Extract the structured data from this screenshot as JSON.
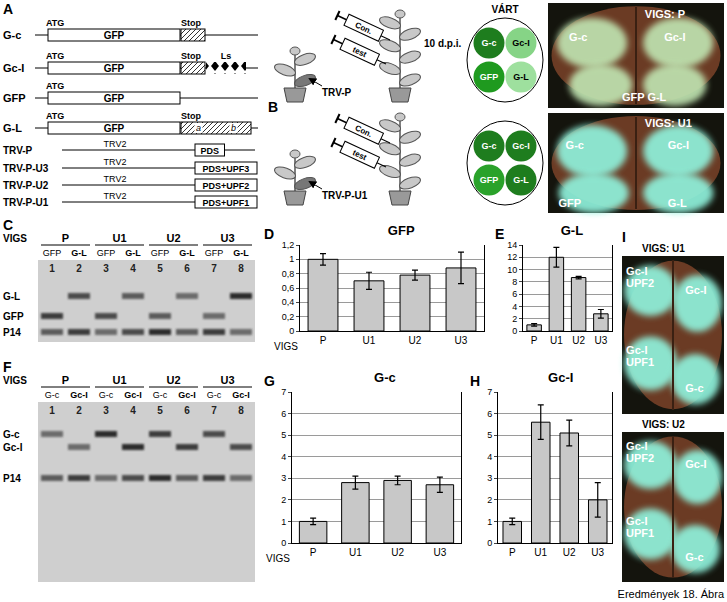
{
  "footer": "Eredmények 18. Ábra",
  "panels": {
    "A": {
      "letter": "A",
      "constructs": [
        {
          "name": "G-c",
          "start": "ATG",
          "orf": "GFP",
          "stop": "Stop"
        },
        {
          "name": "Gc-I",
          "start": "ATG",
          "orf": "GFP",
          "stop": "Stop",
          "extra": "Ls"
        },
        {
          "name": "GFP",
          "start": "ATG",
          "orf": "GFP"
        },
        {
          "name": "G-L",
          "start": "ATG",
          "orf": "GFP",
          "stop": "Stop",
          "segments": [
            "a",
            "b"
          ]
        }
      ],
      "vectors": [
        {
          "name": "TRV-P",
          "backbone": "TRV2",
          "insert": "PDS"
        },
        {
          "name": "TRV-P-U3",
          "backbone": "TRV2",
          "insert": "PDS+UPF3"
        },
        {
          "name": "TRV-P-U2",
          "backbone": "TRV2",
          "insert": "PDS+UPF2"
        },
        {
          "name": "TRV-P-U1",
          "backbone": "TRV2",
          "insert": "PDS+UPF1"
        }
      ]
    },
    "B": {
      "letter": "B",
      "timepoint": "10 d.p.i.",
      "expected": "VÁRT",
      "rows": [
        {
          "vector": "TRV-P",
          "syringes": [
            "Con.",
            "test"
          ],
          "circles": [
            "G-c",
            "Gc-I",
            "GFP",
            "G-L"
          ],
          "colors": [
            "#1e7d1e",
            "#86d486",
            "#1f9a1f",
            "#9ee09e"
          ],
          "photo": {
            "title": "VIGS: P",
            "labels": [
              [
                "G-c"
              ],
              [
                "Gc-I"
              ],
              [
                "GFP G-L"
              ]
            ]
          }
        },
        {
          "vector": "TRV-P-U1",
          "syringes": [
            "Con.",
            "test"
          ],
          "circles": [
            "G-c",
            "Gc-I",
            "GFP",
            "G-L"
          ],
          "colors": [
            "#1e7d1e",
            "#1e7d1e",
            "#2aa22a",
            "#1e7d1e"
          ],
          "photo": {
            "title": "VIGS: U1",
            "labels": [
              [
                "G-c"
              ],
              [
                "Gc-I"
              ],
              [
                "GFP"
              ],
              [
                "G-L"
              ]
            ]
          }
        }
      ]
    },
    "C": {
      "letter": "C",
      "label": "VIGS",
      "groups": [
        "P",
        "U1",
        "U2",
        "U3"
      ],
      "lanes": [
        "GFP",
        "G-L",
        "GFP",
        "G-L",
        "GFP",
        "G-L",
        "GFP",
        "G-L"
      ],
      "lane_numbers": [
        1,
        2,
        3,
        4,
        5,
        6,
        7,
        8
      ],
      "bands": [
        "G-L",
        "GFP",
        "P14"
      ]
    },
    "F": {
      "letter": "F",
      "label": "VIGS",
      "groups": [
        "P",
        "U1",
        "U2",
        "U3"
      ],
      "lanes": [
        "G-c",
        "Gc-I",
        "G-c",
        "Gc-I",
        "G-c",
        "Gc-I",
        "G-c",
        "Gc-I"
      ],
      "lane_numbers": [
        1,
        2,
        3,
        4,
        5,
        6,
        7,
        8
      ],
      "bands": [
        "G-c",
        "Gc-I",
        "P14"
      ]
    },
    "I": {
      "letter": "I",
      "photos": [
        {
          "title": "VIGS: U1",
          "labels": [
            [
              "Gc-I",
              "UPF2"
            ],
            [
              "Gc-I"
            ],
            [
              "Gc-I",
              "UPF1"
            ],
            [
              "G-c"
            ]
          ]
        },
        {
          "title": "VIGS: U2",
          "labels": [
            [
              "Gc-I",
              "UPF2"
            ],
            [
              "Gc-I"
            ],
            [
              "Gc-I",
              "UPF1"
            ],
            [
              "G-c"
            ]
          ]
        }
      ]
    }
  },
  "chart_data": [
    {
      "panel": "D",
      "type": "bar",
      "title": "GFP",
      "x_label": "VIGS",
      "categories": [
        "P",
        "U1",
        "U2",
        "U3"
      ],
      "values": [
        1.0,
        0.7,
        0.78,
        0.88
      ],
      "errors": [
        0.08,
        0.12,
        0.07,
        0.22
      ],
      "color": "#c8c8c8",
      "grid": true,
      "ylim": [
        0,
        1.2
      ],
      "yticks": [
        0,
        {
          "value": 0.2,
          "label": "0,2"
        },
        {
          "value": 0.4,
          "label": "0,4"
        },
        {
          "value": 0.6,
          "label": "0,6"
        },
        {
          "value": 0.8,
          "label": "0,8"
        },
        1,
        {
          "value": 1.2,
          "label": "1,2"
        }
      ]
    },
    {
      "panel": "E",
      "type": "bar",
      "title": "G-L",
      "categories": [
        "P",
        "U1",
        "U2",
        "U3"
      ],
      "values": [
        1,
        12,
        8.7,
        2.8
      ],
      "errors": [
        0.2,
        1.6,
        0.2,
        0.7
      ],
      "color": "#c8c8c8",
      "grid": true,
      "ylim": [
        0,
        14
      ],
      "yticks": [
        0,
        2,
        4,
        6,
        8,
        10,
        12,
        14
      ]
    },
    {
      "panel": "G",
      "type": "bar",
      "title": "G-c",
      "x_label": "VIGS",
      "categories": [
        "P",
        "U1",
        "U2",
        "U3"
      ],
      "values": [
        1,
        2.8,
        2.9,
        2.7
      ],
      "errors": [
        0.15,
        0.3,
        0.2,
        0.35
      ],
      "color": "#c8c8c8",
      "grid": true,
      "ylim": [
        0,
        7
      ],
      "yticks": [
        0,
        1,
        2,
        3,
        4,
        5,
        6,
        7
      ]
    },
    {
      "panel": "H",
      "type": "bar",
      "title": "Gc-I",
      "categories": [
        "P",
        "U1",
        "U2",
        "U3"
      ],
      "values": [
        1,
        5.6,
        5.1,
        2.0
      ],
      "errors": [
        0.15,
        0.8,
        0.6,
        0.8
      ],
      "color": "#c8c8c8",
      "grid": true,
      "ylim": [
        0,
        7
      ],
      "yticks": [
        0,
        1,
        2,
        3,
        4,
        5,
        6,
        7
      ]
    }
  ]
}
